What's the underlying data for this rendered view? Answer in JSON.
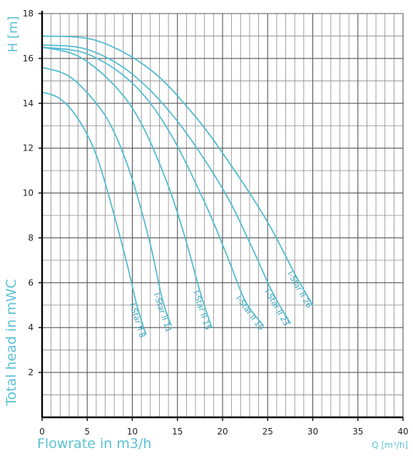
{
  "chart_data": {
    "type": "line",
    "ylabel": "Total head in mWC",
    "y_unit_label": "H [m]",
    "xlabel": "Flowrate in m3/h",
    "x_unit_label": "Q [m³/h]",
    "xlim": [
      0,
      40
    ],
    "ylim": [
      0,
      18
    ],
    "x_ticks": [
      "0",
      "5",
      "10",
      "15",
      "20",
      "25",
      "30",
      "35",
      "40"
    ],
    "y_ticks": [
      "2",
      "4",
      "6",
      "8",
      "10",
      "12",
      "14",
      "16",
      "18"
    ],
    "grid": true,
    "series": [
      {
        "name": "I-Star II 8",
        "x": [
          0,
          2,
          4,
          6,
          8,
          9.5,
          10.5,
          11.5
        ],
        "y": [
          14.5,
          14.2,
          13.3,
          11.7,
          9.0,
          6.7,
          5.0,
          3.7
        ]
      },
      {
        "name": "I-Star II 11",
        "x": [
          0,
          3,
          6,
          8,
          10,
          12,
          13.3,
          14.3
        ],
        "y": [
          15.6,
          15.2,
          14.0,
          12.7,
          10.6,
          7.7,
          5.3,
          4.1
        ]
      },
      {
        "name": "I-Star II 15",
        "x": [
          0,
          4,
          8,
          11,
          14,
          16,
          17.5,
          18.8
        ],
        "y": [
          16.5,
          16.1,
          14.8,
          13.1,
          10.3,
          7.8,
          5.6,
          4.0
        ]
      },
      {
        "name": "I-Star II 19",
        "x": [
          0,
          5,
          10,
          14,
          18,
          20.5,
          22.5,
          24.5
        ],
        "y": [
          16.5,
          16.2,
          14.9,
          12.8,
          9.6,
          7.2,
          5.2,
          4.1
        ]
      },
      {
        "name": "I-Star II 23",
        "x": [
          0,
          5,
          10,
          15,
          20,
          23,
          25.5,
          27.5
        ],
        "y": [
          16.6,
          16.4,
          15.3,
          13.2,
          10.2,
          7.8,
          5.6,
          4.2
        ]
      },
      {
        "name": "I-Star II 26",
        "x": [
          0,
          6,
          12,
          17,
          21,
          25,
          28,
          30
        ],
        "y": [
          17.0,
          16.8,
          15.5,
          13.4,
          11.2,
          8.7,
          6.4,
          5.0
        ]
      }
    ]
  }
}
